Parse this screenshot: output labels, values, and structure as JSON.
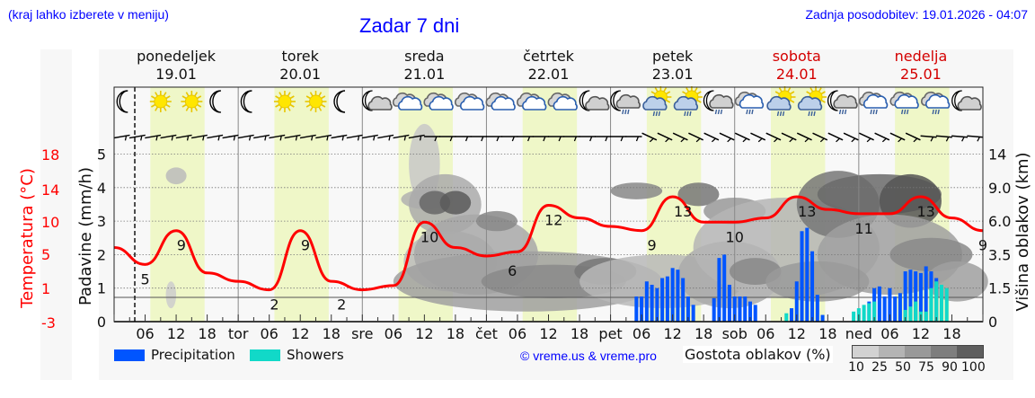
{
  "header": {
    "hint": "(kraj lahko izberete v meniju)",
    "title": "Zadar 7 dni",
    "updated": "Zadnja posodobitev: 19.01.2026 - 04:07"
  },
  "days": [
    {
      "name": "ponedeljek",
      "date": "19.01",
      "weekend": false
    },
    {
      "name": "torek",
      "date": "20.01",
      "weekend": false
    },
    {
      "name": "sreda",
      "date": "21.01",
      "weekend": false
    },
    {
      "name": "četrtek",
      "date": "22.01",
      "weekend": false
    },
    {
      "name": "petek",
      "date": "23.01",
      "weekend": false
    },
    {
      "name": "sobota",
      "date": "24.01",
      "weekend": true
    },
    {
      "name": "nedelja",
      "date": "25.01",
      "weekend": true
    }
  ],
  "axes": {
    "temp_label": "Temperatura (°C)",
    "temp_ticks": [
      "18",
      "14",
      "10",
      "5",
      "1",
      "-3"
    ],
    "precip_label": "Padavine (mm/h)",
    "precip_ticks": [
      "5",
      "4",
      "3",
      "2",
      "1",
      "0"
    ],
    "cloud_label": "Višina oblakov (km)",
    "cloud_ticks": [
      "14",
      "9.0",
      "6.0",
      "3.5",
      "1.5",
      "0"
    ],
    "x_ticks": [
      "06",
      "12",
      "18",
      "tor",
      "06",
      "12",
      "18",
      "sre",
      "06",
      "12",
      "18",
      "čet",
      "06",
      "12",
      "18",
      "pet",
      "06",
      "12",
      "18",
      "sob",
      "06",
      "12",
      "18",
      "ned",
      "06",
      "12",
      "18"
    ]
  },
  "legend": {
    "precipitation": "Precipitation",
    "showers": "Showers",
    "copyright": "© vreme.us & vreme.pro",
    "cloud_density": "Gostota oblakov (%)",
    "cloud_scale": [
      "10",
      "25",
      "50",
      "75",
      "90",
      "100"
    ]
  },
  "colors": {
    "precipitation": "#0055ff",
    "showers": "#11d9c8",
    "temperature": "#ff0000",
    "daylight": "#eff7c8",
    "weekend": "#d40000",
    "link": "#0000ff"
  },
  "weather_icons": [
    "moon-clear",
    "sun",
    "sun",
    "moon-clear",
    "moon-clear",
    "sun",
    "sun",
    "moon-clear",
    "moon-cloud",
    "cloud",
    "cloud",
    "cloud",
    "cloud",
    "cloud",
    "cloud",
    "moon-cloud",
    "moon-cloud-rain",
    "sun-cloud-rain",
    "sun-cloud-rain",
    "moon-cloud-rain",
    "cloud-rain",
    "sun-cloud-rain",
    "sun-cloud-rain",
    "moon-cloud-rain",
    "cloud-rain",
    "cloud-rain",
    "cloud-rain",
    "moon-cloud"
  ],
  "chart_data": {
    "type": "line+bar",
    "title": "Zadar 7 dni",
    "xlabel": "",
    "ylabel": "Padavine (mm/h)",
    "ylim": [
      0,
      5.3
    ],
    "temperature_series": {
      "name": "Temperatura (°C)",
      "hours": [
        0,
        6,
        12,
        18,
        24,
        30,
        36,
        42,
        48,
        54,
        60,
        66,
        72,
        78,
        84,
        90,
        96,
        102,
        108,
        114,
        120,
        126,
        132,
        138,
        144,
        150,
        156,
        162,
        168
      ],
      "values": [
        7,
        5,
        9,
        4,
        3,
        2,
        9,
        3,
        2,
        2.5,
        10,
        7,
        6,
        6.5,
        12,
        10.5,
        9.5,
        9,
        13,
        10,
        10,
        10.5,
        13,
        11.5,
        11,
        11,
        13,
        10.5,
        9
      ],
      "labels": [
        {
          "hour": 6,
          "value": "5"
        },
        {
          "hour": 13,
          "value": "9"
        },
        {
          "hour": 31,
          "value": "2"
        },
        {
          "hour": 37,
          "value": "9"
        },
        {
          "hour": 44,
          "value": "2"
        },
        {
          "hour": 61,
          "value": "10"
        },
        {
          "hour": 77,
          "value": "6"
        },
        {
          "hour": 85,
          "value": "12"
        },
        {
          "hour": 104,
          "value": "9"
        },
        {
          "hour": 110,
          "value": "13"
        },
        {
          "hour": 120,
          "value": "10"
        },
        {
          "hour": 134,
          "value": "13"
        },
        {
          "hour": 145,
          "value": "11"
        },
        {
          "hour": 157,
          "value": "13"
        },
        {
          "hour": 168,
          "value": "9"
        }
      ]
    },
    "precipitation_series": {
      "name": "Precipitation",
      "bars": [
        {
          "hour": 101,
          "v": 0.75
        },
        {
          "hour": 102,
          "v": 0.75
        },
        {
          "hour": 103,
          "v": 1.2
        },
        {
          "hour": 104,
          "v": 1.1
        },
        {
          "hour": 105,
          "v": 1.0
        },
        {
          "hour": 106,
          "v": 1.3
        },
        {
          "hour": 107,
          "v": 1.35
        },
        {
          "hour": 108,
          "v": 1.6
        },
        {
          "hour": 109,
          "v": 1.55
        },
        {
          "hour": 110,
          "v": 1.3
        },
        {
          "hour": 111,
          "v": 0.75
        },
        {
          "hour": 112,
          "v": 0.5
        },
        {
          "hour": 116,
          "v": 0.7
        },
        {
          "hour": 117,
          "v": 1.9
        },
        {
          "hour": 118,
          "v": 2.0
        },
        {
          "hour": 119,
          "v": 1.1
        },
        {
          "hour": 120,
          "v": 0.75
        },
        {
          "hour": 121,
          "v": 0.75
        },
        {
          "hour": 122,
          "v": 0.75
        },
        {
          "hour": 123,
          "v": 0.6
        },
        {
          "hour": 124,
          "v": 0.5
        },
        {
          "hour": 131,
          "v": 0.4
        },
        {
          "hour": 132,
          "v": 1.2
        },
        {
          "hour": 133,
          "v": 2.7
        },
        {
          "hour": 134,
          "v": 2.8
        },
        {
          "hour": 135,
          "v": 2.1
        },
        {
          "hour": 136,
          "v": 0.8
        },
        {
          "hour": 137,
          "v": 0.2
        },
        {
          "hour": 146,
          "v": 0.6
        },
        {
          "hour": 147,
          "v": 1.0
        },
        {
          "hour": 148,
          "v": 1.05
        },
        {
          "hour": 149,
          "v": 0.75
        },
        {
          "hour": 150,
          "v": 1.0
        },
        {
          "hour": 151,
          "v": 0.75
        },
        {
          "hour": 152,
          "v": 0.85
        },
        {
          "hour": 153,
          "v": 1.5
        },
        {
          "hour": 154,
          "v": 1.55
        },
        {
          "hour": 155,
          "v": 1.5
        },
        {
          "hour": 156,
          "v": 1.45
        },
        {
          "hour": 157,
          "v": 1.65
        },
        {
          "hour": 158,
          "v": 1.5
        },
        {
          "hour": 159,
          "v": 1.3
        }
      ]
    },
    "showers_series": {
      "name": "Showers",
      "bars": [
        {
          "hour": 130,
          "v": 0.25
        },
        {
          "hour": 143,
          "v": 0.3
        },
        {
          "hour": 144,
          "v": 0.4
        },
        {
          "hour": 145,
          "v": 0.5
        },
        {
          "hour": 146,
          "v": 0.55
        },
        {
          "hour": 147,
          "v": 0.6
        },
        {
          "hour": 153,
          "v": 0.35
        },
        {
          "hour": 154,
          "v": 0.45
        },
        {
          "hour": 155,
          "v": 0.6
        },
        {
          "hour": 156,
          "v": 0.3
        },
        {
          "hour": 157,
          "v": 0.3
        },
        {
          "hour": 158,
          "v": 1.0
        },
        {
          "hour": 159,
          "v": 1.2
        },
        {
          "hour": 160,
          "v": 1.1
        },
        {
          "hour": 161,
          "v": 1.0
        }
      ]
    },
    "daylight_hours": [
      7,
      17.5
    ],
    "now_hour": 4,
    "legend_position": "bottom"
  }
}
